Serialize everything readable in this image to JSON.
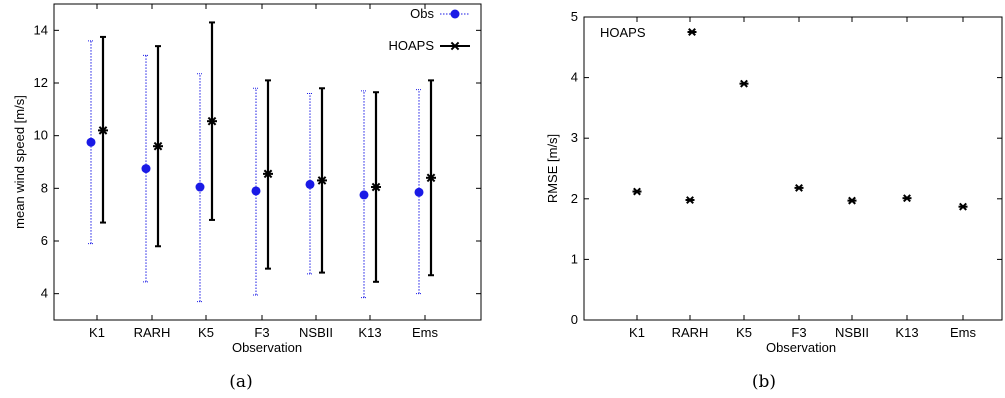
{
  "panels": [
    {
      "caption": "(a)"
    },
    {
      "caption": "(b)"
    }
  ],
  "chart_data": [
    {
      "type": "errorbar",
      "xlabel": "Observation",
      "ylabel": "mean wind speed [m/s]",
      "categories": [
        "K1",
        "RARH",
        "K5",
        "F3",
        "NSBII",
        "K13",
        "Ems"
      ],
      "ylim": [
        3,
        15
      ],
      "yticks": [
        4,
        6,
        8,
        10,
        12,
        14
      ],
      "legend_position": "top-right",
      "grid": false,
      "series": [
        {
          "name": "Obs",
          "color": "#1a1ae6",
          "marker": "filled-circle",
          "line": "dotted",
          "values": [
            9.75,
            8.75,
            8.05,
            7.9,
            8.15,
            7.75,
            7.85
          ],
          "lower": [
            5.9,
            4.45,
            3.7,
            3.95,
            4.75,
            3.85,
            4.0
          ],
          "upper": [
            13.6,
            13.05,
            12.35,
            11.8,
            11.6,
            11.7,
            11.75
          ]
        },
        {
          "name": "HOAPS",
          "color": "#000000",
          "marker": "asterisk",
          "line": "solid",
          "values": [
            10.2,
            9.6,
            10.55,
            8.55,
            8.3,
            8.05,
            8.4
          ],
          "lower": [
            6.7,
            5.8,
            6.8,
            4.95,
            4.8,
            4.45,
            4.7
          ],
          "upper": [
            13.75,
            13.4,
            14.3,
            12.1,
            11.8,
            11.65,
            12.1
          ]
        }
      ]
    },
    {
      "type": "scatter",
      "xlabel": "Observation",
      "ylabel": "RMSE [m/s]",
      "categories": [
        "K1",
        "RARH",
        "K5",
        "F3",
        "NSBII",
        "K13",
        "Ems"
      ],
      "ylim": [
        0,
        5
      ],
      "yticks": [
        0,
        1,
        2,
        3,
        4,
        5
      ],
      "legend_position": "top-left",
      "grid": false,
      "series": [
        {
          "name": "HOAPS",
          "color": "#000000",
          "marker": "asterisk",
          "values": [
            2.12,
            1.98,
            3.9,
            2.18,
            1.97,
            2.01,
            1.87
          ]
        }
      ]
    }
  ]
}
